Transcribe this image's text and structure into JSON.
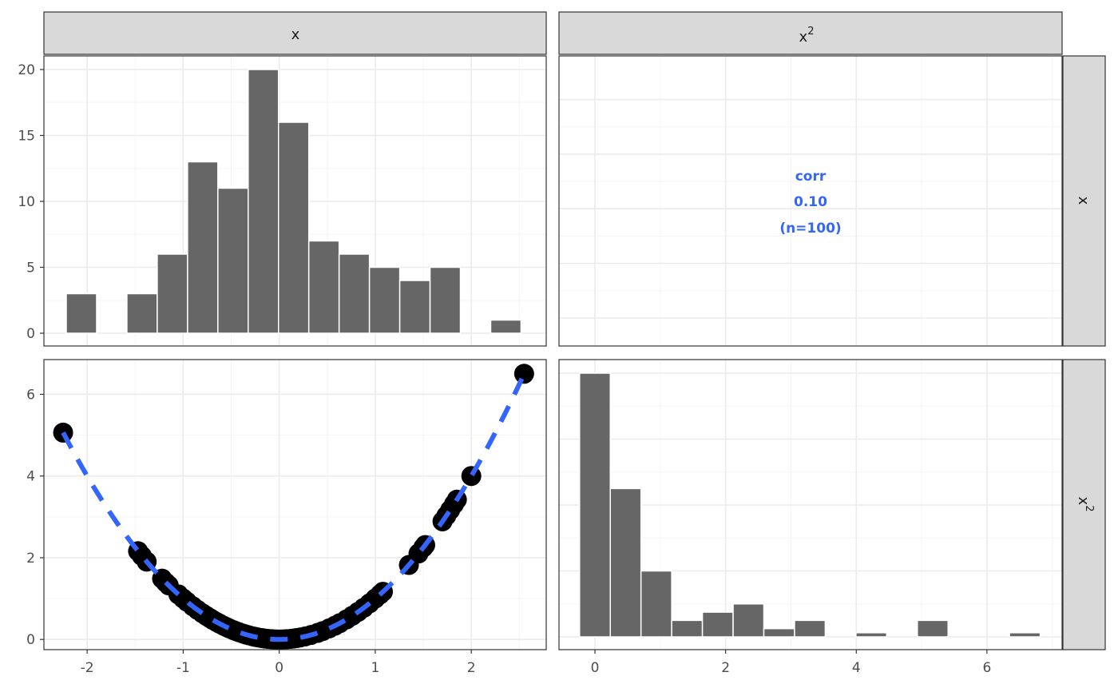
{
  "chart_data": [
    {
      "type": "bar",
      "panel": "x / x (diagonal histogram)",
      "strip_top": "x",
      "bin_width": 0.32,
      "bins": [
        {
          "x": -2.12,
          "count": 3
        },
        {
          "x": -1.8,
          "count": 0
        },
        {
          "x": -1.48,
          "count": 3
        },
        {
          "x": -1.16,
          "count": 6
        },
        {
          "x": -0.84,
          "count": 13
        },
        {
          "x": -0.52,
          "count": 11
        },
        {
          "x": -0.2,
          "count": 20
        },
        {
          "x": 0.12,
          "count": 16
        },
        {
          "x": 0.44,
          "count": 7
        },
        {
          "x": 0.76,
          "count": 6
        },
        {
          "x": 1.08,
          "count": 5
        },
        {
          "x": 1.4,
          "count": 4
        },
        {
          "x": 1.72,
          "count": 5
        },
        {
          "x": 2.04,
          "count": 0
        },
        {
          "x": 2.36,
          "count": 1
        }
      ],
      "xlim": [
        -2.28,
        2.55
      ],
      "ylim": [
        0,
        20
      ],
      "yticks": [
        0,
        5,
        10,
        15,
        20
      ]
    },
    {
      "type": "table",
      "panel": "x^2 vs x (correlation)",
      "strip_top": "x",
      "strip_sup": "2",
      "strip_right": "x",
      "lines": [
        "corr",
        "0.10",
        "(n=100)"
      ]
    },
    {
      "type": "scatter",
      "panel": "x vs x^2",
      "strip_right": "x",
      "strip_right_sup": "2",
      "points_x": [
        -2.25,
        -1.47,
        -1.43,
        -1.38,
        -1.22,
        -1.18,
        -1.15,
        -1.05,
        -1.0,
        -0.96,
        -0.9,
        -0.85,
        -0.8,
        -0.76,
        -0.72,
        -0.69,
        -0.65,
        -0.62,
        -0.58,
        -0.55,
        -0.52,
        -0.48,
        -0.45,
        -0.42,
        -0.38,
        -0.35,
        -0.32,
        -0.28,
        -0.25,
        -0.22,
        -0.18,
        -0.15,
        -0.12,
        -0.08,
        -0.05,
        -0.02,
        0.02,
        0.05,
        0.08,
        0.12,
        0.15,
        0.18,
        0.22,
        0.27,
        0.33,
        0.4,
        0.45,
        0.52,
        0.58,
        0.63,
        0.7,
        0.76,
        0.82,
        0.88,
        0.94,
        1.0,
        1.05,
        1.08,
        1.35,
        1.45,
        1.5,
        1.52,
        1.7,
        1.74,
        1.78,
        1.82,
        1.85,
        2.0,
        2.55
      ],
      "fit": "dashed blue curve y = x^2",
      "xlim": [
        -2.45,
        2.78
      ],
      "ylim": [
        -0.25,
        6.85
      ],
      "xticks": [
        -2,
        -1,
        0,
        1,
        2
      ],
      "yticks": [
        0,
        2,
        4,
        6
      ]
    },
    {
      "type": "bar",
      "panel": "x^2 / x^2 (diagonal histogram)",
      "bin_width": 0.47,
      "bins": [
        {
          "x": 0.0,
          "count": 32
        },
        {
          "x": 0.47,
          "count": 18
        },
        {
          "x": 0.94,
          "count": 8
        },
        {
          "x": 1.41,
          "count": 2
        },
        {
          "x": 1.88,
          "count": 3
        },
        {
          "x": 2.35,
          "count": 4
        },
        {
          "x": 2.82,
          "count": 1
        },
        {
          "x": 3.29,
          "count": 2
        },
        {
          "x": 3.76,
          "count": 0
        },
        {
          "x": 4.23,
          "count": 0.5
        },
        {
          "x": 4.7,
          "count": 0
        },
        {
          "x": 5.17,
          "count": 2
        },
        {
          "x": 5.64,
          "count": 0
        },
        {
          "x": 6.11,
          "count": 0
        },
        {
          "x": 6.58,
          "count": 0.5
        }
      ],
      "xlim": [
        -0.55,
        7.15
      ],
      "ylim": [
        0,
        32
      ],
      "xticks": [
        0,
        2,
        4,
        6
      ]
    }
  ],
  "colors": {
    "bar_fill": "#666666",
    "bar_stroke": "#ffffff",
    "point": "#000000",
    "fit_line": "#3366ff",
    "strip_fill": "#d9d9d9",
    "panel_border": "#333333",
    "grid_major": "#ebebeb",
    "grid_minor": "#f5f5f5"
  }
}
